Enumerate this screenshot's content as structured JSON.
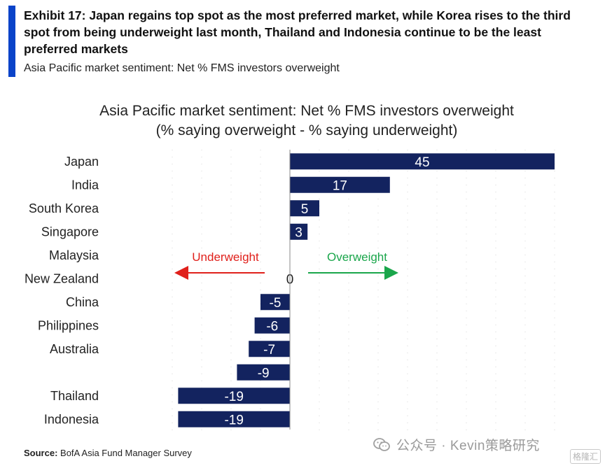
{
  "header": {
    "title": "Exhibit 17: Japan regains top spot as the most preferred market, while Korea rises to the third spot from being underweight last month, Thailand and Indonesia continue to be the least preferred markets",
    "subtitle": "Asia Pacific market sentiment: Net % FMS investors overweight"
  },
  "chart_data": {
    "type": "bar",
    "orientation": "horizontal",
    "title": "Asia Pacific market sentiment: Net % FMS investors overweight",
    "subtitle": "(% saying overweight - % saying underweight)",
    "categories": [
      "Japan",
      "India",
      "South Korea",
      "Singapore",
      "Malaysia",
      "New Zealand",
      "China",
      "Philippines",
      "Australia",
      "",
      "Thailand",
      "Indonesia"
    ],
    "values": [
      45,
      17,
      5,
      3,
      0,
      0,
      -5,
      -6,
      -7,
      -9,
      -19,
      -19
    ],
    "data_labels": [
      "45",
      "17",
      "5",
      "3",
      "",
      "0",
      "-5",
      "-6",
      "-7",
      "-9",
      "-19",
      "-19"
    ],
    "xlim": [
      -20,
      45
    ],
    "grid": true,
    "annotations": {
      "underweight": "Underweight",
      "overweight": "Overweight"
    },
    "colors": {
      "bar": "#13235f",
      "underweight": "#e0201b",
      "overweight": "#1aa64b",
      "axis": "#888888"
    }
  },
  "footer": {
    "source_label": "Source:",
    "source_text": "BofA Asia Fund Manager Survey"
  },
  "watermark": {
    "text": "公众号 · Kevin策略研究",
    "corner": "格隆汇"
  }
}
